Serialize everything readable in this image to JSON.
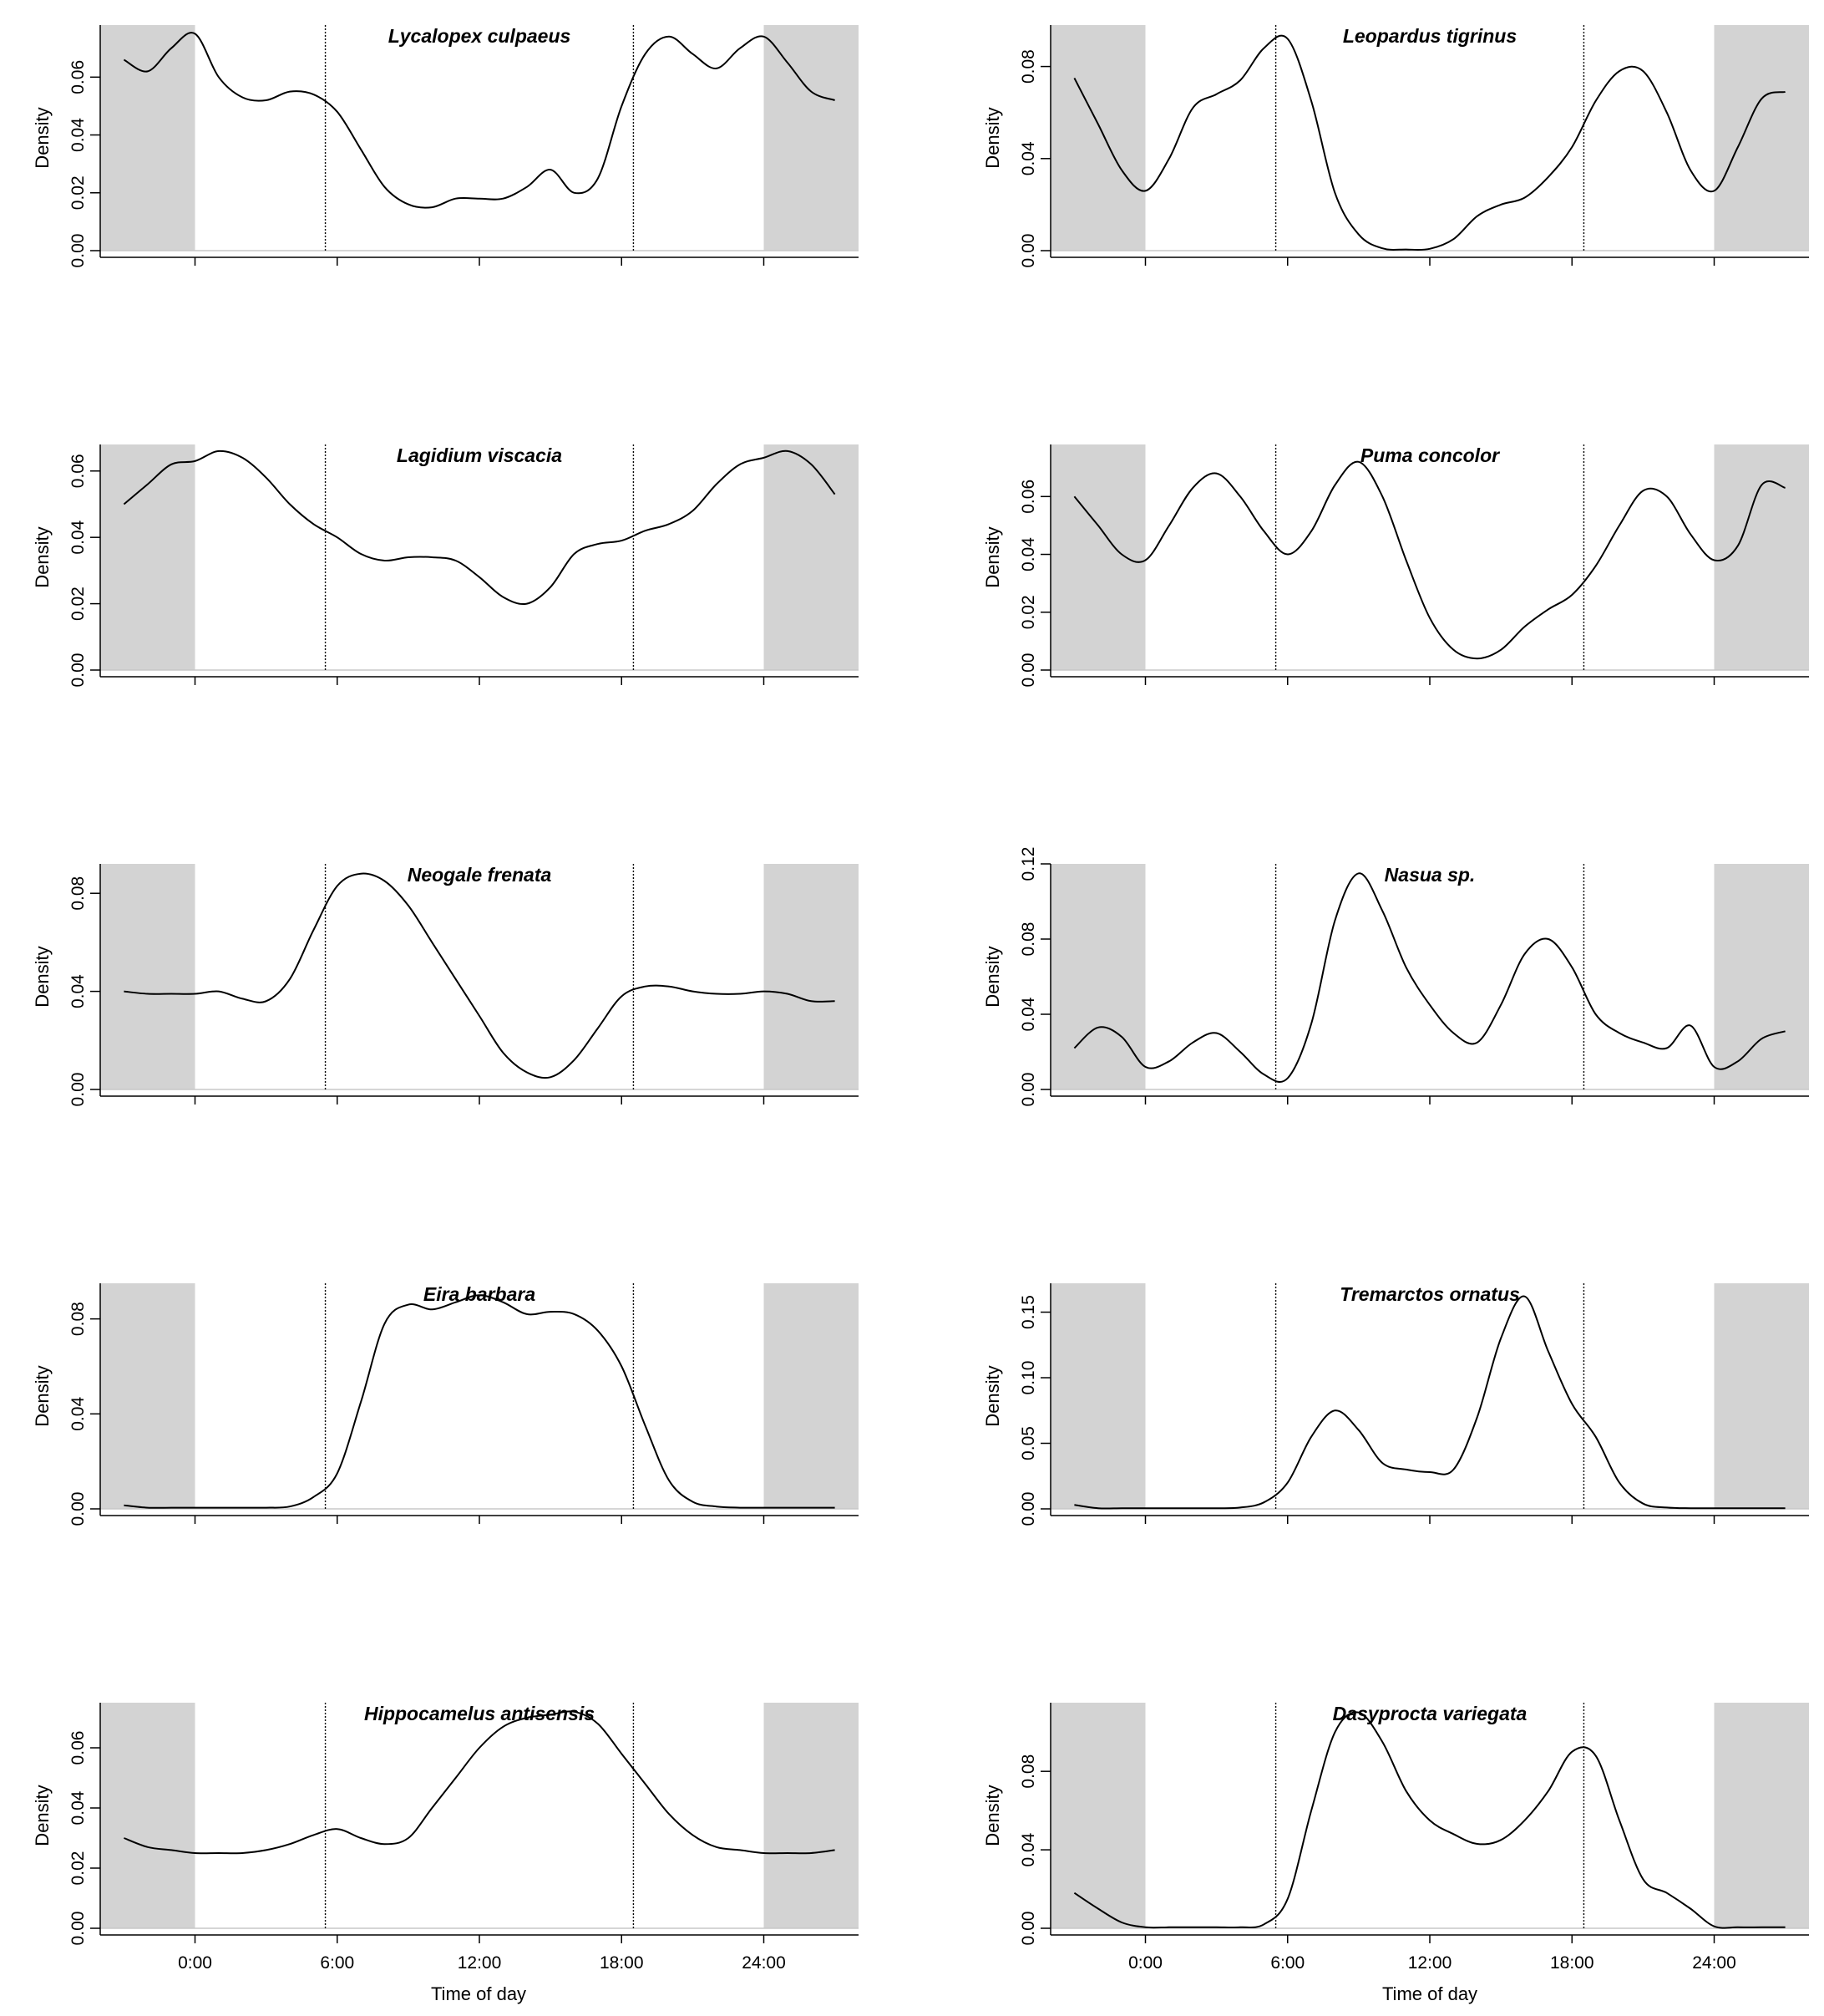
{
  "figure": {
    "xlabel": "Time of day",
    "ylabel": "Density",
    "x_tick_labels": [
      "0:00",
      "6:00",
      "12:00",
      "18:00",
      "24:00"
    ]
  },
  "chart_data": [
    {
      "type": "line",
      "title": "Lycalopex culpaeus",
      "xlabel": "",
      "ylabel": "Density",
      "xlim": [
        -4,
        28
      ],
      "ylim": [
        0,
        0.078
      ],
      "xticks": [
        0,
        6,
        12,
        18,
        24
      ],
      "yticks": [
        0,
        0.02,
        0.04,
        0.06
      ],
      "ytick_labels": [
        "0.00",
        "0.02",
        "0.04",
        "0.06"
      ],
      "night_shading": [
        [
          -4,
          0
        ],
        [
          24,
          28
        ]
      ],
      "sunrise_sunset_lines": [
        5.5,
        18.5
      ],
      "grid": false,
      "legend": "none",
      "x": [
        -3,
        -2,
        -1,
        0,
        1,
        2,
        3,
        4,
        5,
        6,
        7,
        8,
        9,
        10,
        11,
        12,
        13,
        14,
        15,
        16,
        17,
        18,
        19,
        20,
        21,
        22,
        23,
        24,
        25,
        26,
        27
      ],
      "y": [
        0.066,
        0.062,
        0.07,
        0.075,
        0.06,
        0.053,
        0.052,
        0.055,
        0.054,
        0.048,
        0.035,
        0.022,
        0.016,
        0.015,
        0.018,
        0.018,
        0.018,
        0.022,
        0.028,
        0.02,
        0.025,
        0.05,
        0.068,
        0.074,
        0.068,
        0.063,
        0.07,
        0.074,
        0.065,
        0.055,
        0.052
      ]
    },
    {
      "type": "line",
      "title": "Leopardus tigrinus",
      "xlabel": "",
      "ylabel": "Density",
      "xlim": [
        -4,
        28
      ],
      "ylim": [
        0,
        0.098
      ],
      "xticks": [
        0,
        6,
        12,
        18,
        24
      ],
      "yticks": [
        0,
        0.04,
        0.08
      ],
      "ytick_labels": [
        "0.00",
        "0.04",
        "0.08"
      ],
      "night_shading": [
        [
          -4,
          0
        ],
        [
          24,
          28
        ]
      ],
      "sunrise_sunset_lines": [
        5.5,
        18.5
      ],
      "grid": false,
      "legend": "none",
      "x": [
        -3,
        -2,
        -1,
        0,
        1,
        2,
        3,
        4,
        5,
        6,
        7,
        8,
        9,
        10,
        11,
        12,
        13,
        14,
        15,
        16,
        17,
        18,
        19,
        20,
        21,
        22,
        23,
        24,
        25,
        26,
        27
      ],
      "y": [
        0.075,
        0.055,
        0.035,
        0.026,
        0.04,
        0.062,
        0.068,
        0.074,
        0.088,
        0.092,
        0.065,
        0.025,
        0.007,
        0.001,
        0.0005,
        0.0008,
        0.005,
        0.015,
        0.02,
        0.023,
        0.032,
        0.045,
        0.065,
        0.078,
        0.078,
        0.06,
        0.035,
        0.026,
        0.045,
        0.066,
        0.069
      ]
    },
    {
      "type": "line",
      "title": "Lagidium viscacia",
      "xlabel": "",
      "ylabel": "Density",
      "xlim": [
        -4,
        28
      ],
      "ylim": [
        0,
        0.068
      ],
      "xticks": [
        0,
        6,
        12,
        18,
        24
      ],
      "yticks": [
        0,
        0.02,
        0.04,
        0.06
      ],
      "ytick_labels": [
        "0.00",
        "0.02",
        "0.04",
        "0.06"
      ],
      "night_shading": [
        [
          -4,
          0
        ],
        [
          24,
          28
        ]
      ],
      "sunrise_sunset_lines": [
        5.5,
        18.5
      ],
      "grid": false,
      "legend": "none",
      "x": [
        -3,
        -2,
        -1,
        0,
        1,
        2,
        3,
        4,
        5,
        6,
        7,
        8,
        9,
        10,
        11,
        12,
        13,
        14,
        15,
        16,
        17,
        18,
        19,
        20,
        21,
        22,
        23,
        24,
        25,
        26,
        27
      ],
      "y": [
        0.05,
        0.056,
        0.062,
        0.063,
        0.066,
        0.064,
        0.058,
        0.05,
        0.044,
        0.04,
        0.035,
        0.033,
        0.034,
        0.034,
        0.033,
        0.028,
        0.022,
        0.02,
        0.025,
        0.035,
        0.038,
        0.039,
        0.042,
        0.044,
        0.048,
        0.056,
        0.062,
        0.064,
        0.066,
        0.062,
        0.053
      ]
    },
    {
      "type": "line",
      "title": "Puma concolor",
      "xlabel": "",
      "ylabel": "Density",
      "xlim": [
        -4,
        28
      ],
      "ylim": [
        0,
        0.078
      ],
      "xticks": [
        0,
        6,
        12,
        18,
        24
      ],
      "yticks": [
        0,
        0.02,
        0.04,
        0.06
      ],
      "ytick_labels": [
        "0.00",
        "0.02",
        "0.04",
        "0.06"
      ],
      "night_shading": [
        [
          -4,
          0
        ],
        [
          24,
          28
        ]
      ],
      "sunrise_sunset_lines": [
        5.5,
        18.5
      ],
      "grid": false,
      "legend": "none",
      "x": [
        -3,
        -2,
        -1,
        0,
        1,
        2,
        3,
        4,
        5,
        6,
        7,
        8,
        9,
        10,
        11,
        12,
        13,
        14,
        15,
        16,
        17,
        18,
        19,
        20,
        21,
        22,
        23,
        24,
        25,
        26,
        27
      ],
      "y": [
        0.06,
        0.05,
        0.04,
        0.038,
        0.05,
        0.063,
        0.068,
        0.06,
        0.048,
        0.04,
        0.048,
        0.064,
        0.072,
        0.06,
        0.038,
        0.018,
        0.007,
        0.004,
        0.007,
        0.015,
        0.021,
        0.026,
        0.036,
        0.05,
        0.062,
        0.06,
        0.047,
        0.038,
        0.043,
        0.064,
        0.063
      ]
    },
    {
      "type": "line",
      "title": "Neogale frenata",
      "xlabel": "",
      "ylabel": "Density",
      "xlim": [
        -4,
        28
      ],
      "ylim": [
        0,
        0.092
      ],
      "xticks": [
        0,
        6,
        12,
        18,
        24
      ],
      "yticks": [
        0,
        0.04,
        0.08
      ],
      "ytick_labels": [
        "0.00",
        "0.04",
        "0.08"
      ],
      "night_shading": [
        [
          -4,
          0
        ],
        [
          24,
          28
        ]
      ],
      "sunrise_sunset_lines": [
        5.5,
        18.5
      ],
      "grid": false,
      "legend": "none",
      "x": [
        -3,
        -2,
        -1,
        0,
        1,
        2,
        3,
        4,
        5,
        6,
        7,
        8,
        9,
        10,
        11,
        12,
        13,
        14,
        15,
        16,
        17,
        18,
        19,
        20,
        21,
        22,
        23,
        24,
        25,
        26,
        27
      ],
      "y": [
        0.04,
        0.039,
        0.039,
        0.039,
        0.04,
        0.037,
        0.036,
        0.045,
        0.065,
        0.083,
        0.088,
        0.085,
        0.075,
        0.06,
        0.045,
        0.03,
        0.015,
        0.007,
        0.005,
        0.012,
        0.025,
        0.038,
        0.042,
        0.042,
        0.04,
        0.039,
        0.039,
        0.04,
        0.039,
        0.036,
        0.036
      ]
    },
    {
      "type": "line",
      "title": "Nasua sp.",
      "xlabel": "",
      "ylabel": "Density",
      "xlim": [
        -4,
        28
      ],
      "ylim": [
        0,
        0.12
      ],
      "xticks": [
        0,
        6,
        12,
        18,
        24
      ],
      "yticks": [
        0,
        0.04,
        0.08,
        0.12
      ],
      "ytick_labels": [
        "0.00",
        "0.04",
        "0.08",
        "0.12"
      ],
      "night_shading": [
        [
          -4,
          0
        ],
        [
          24,
          28
        ]
      ],
      "sunrise_sunset_lines": [
        5.5,
        18.5
      ],
      "grid": false,
      "legend": "none",
      "x": [
        -3,
        -2,
        -1,
        0,
        1,
        2,
        3,
        4,
        5,
        6,
        7,
        8,
        9,
        10,
        11,
        12,
        13,
        14,
        15,
        16,
        17,
        18,
        19,
        20,
        21,
        22,
        23,
        24,
        25,
        26,
        27
      ],
      "y": [
        0.022,
        0.033,
        0.028,
        0.012,
        0.015,
        0.025,
        0.03,
        0.02,
        0.008,
        0.006,
        0.035,
        0.09,
        0.115,
        0.095,
        0.065,
        0.045,
        0.03,
        0.025,
        0.045,
        0.072,
        0.08,
        0.065,
        0.04,
        0.03,
        0.025,
        0.022,
        0.034,
        0.012,
        0.015,
        0.027,
        0.031
      ]
    },
    {
      "type": "line",
      "title": "Eira barbara",
      "xlabel": "",
      "ylabel": "Density",
      "xlim": [
        -4,
        28
      ],
      "ylim": [
        0,
        0.095
      ],
      "xticks": [
        0,
        6,
        12,
        18,
        24
      ],
      "yticks": [
        0,
        0.04,
        0.08
      ],
      "ytick_labels": [
        "0.00",
        "0.04",
        "0.08"
      ],
      "night_shading": [
        [
          -4,
          0
        ],
        [
          24,
          28
        ]
      ],
      "sunrise_sunset_lines": [
        5.5,
        18.5
      ],
      "grid": false,
      "legend": "none",
      "x": [
        -3,
        -2,
        -1,
        0,
        1,
        2,
        3,
        4,
        5,
        6,
        7,
        8,
        9,
        10,
        11,
        12,
        13,
        14,
        15,
        16,
        17,
        18,
        19,
        20,
        21,
        22,
        23,
        24,
        25,
        26,
        27
      ],
      "y": [
        0.0015,
        0.0005,
        0.0005,
        0.0005,
        0.0005,
        0.0005,
        0.0005,
        0.001,
        0.005,
        0.015,
        0.045,
        0.078,
        0.086,
        0.084,
        0.087,
        0.09,
        0.087,
        0.082,
        0.083,
        0.082,
        0.075,
        0.06,
        0.035,
        0.012,
        0.003,
        0.001,
        0.0005,
        0.0005,
        0.0005,
        0.0005,
        0.0005
      ]
    },
    {
      "type": "line",
      "title": "Tremarctos ornatus",
      "xlabel": "",
      "ylabel": "Density",
      "xlim": [
        -4,
        28
      ],
      "ylim": [
        0,
        0.172
      ],
      "xticks": [
        0,
        6,
        12,
        18,
        24
      ],
      "yticks": [
        0,
        0.05,
        0.1,
        0.15
      ],
      "ytick_labels": [
        "0.00",
        "0.05",
        "0.10",
        "0.15"
      ],
      "night_shading": [
        [
          -4,
          0
        ],
        [
          24,
          28
        ]
      ],
      "sunrise_sunset_lines": [
        5.5,
        18.5
      ],
      "grid": false,
      "legend": "none",
      "x": [
        -3,
        -2,
        -1,
        0,
        1,
        2,
        3,
        4,
        5,
        6,
        7,
        8,
        9,
        10,
        11,
        12,
        13,
        14,
        15,
        16,
        17,
        18,
        19,
        20,
        21,
        22,
        23,
        24,
        25,
        26,
        27
      ],
      "y": [
        0.003,
        0.0005,
        0.0005,
        0.0005,
        0.0005,
        0.0005,
        0.0005,
        0.001,
        0.005,
        0.02,
        0.055,
        0.075,
        0.06,
        0.035,
        0.03,
        0.028,
        0.03,
        0.07,
        0.13,
        0.162,
        0.12,
        0.08,
        0.055,
        0.02,
        0.004,
        0.001,
        0.0005,
        0.0005,
        0.0005,
        0.0005,
        0.0005
      ]
    },
    {
      "type": "line",
      "title": "Hippocamelus antisensis",
      "xlabel": "Time of day",
      "ylabel": "Density",
      "xlim": [
        -4,
        28
      ],
      "ylim": [
        0,
        0.075
      ],
      "xticks": [
        0,
        6,
        12,
        18,
        24
      ],
      "xtick_labels": [
        "0:00",
        "6:00",
        "12:00",
        "18:00",
        "24:00"
      ],
      "yticks": [
        0,
        0.02,
        0.04,
        0.06
      ],
      "ytick_labels": [
        "0.00",
        "0.02",
        "0.04",
        "0.06"
      ],
      "night_shading": [
        [
          -4,
          0
        ],
        [
          24,
          28
        ]
      ],
      "sunrise_sunset_lines": [
        5.5,
        18.5
      ],
      "grid": false,
      "legend": "none",
      "x": [
        -3,
        -2,
        -1,
        0,
        1,
        2,
        3,
        4,
        5,
        6,
        7,
        8,
        9,
        10,
        11,
        12,
        13,
        14,
        15,
        16,
        17,
        18,
        19,
        20,
        21,
        22,
        23,
        24,
        25,
        26,
        27
      ],
      "y": [
        0.03,
        0.027,
        0.026,
        0.025,
        0.025,
        0.025,
        0.026,
        0.028,
        0.031,
        0.033,
        0.03,
        0.028,
        0.03,
        0.04,
        0.05,
        0.06,
        0.067,
        0.07,
        0.071,
        0.072,
        0.068,
        0.058,
        0.048,
        0.038,
        0.031,
        0.027,
        0.026,
        0.025,
        0.025,
        0.025,
        0.026
      ]
    },
    {
      "type": "line",
      "title": "Dasyprocta variegata",
      "xlabel": "Time of day",
      "ylabel": "Density",
      "xlim": [
        -4,
        28
      ],
      "ylim": [
        0,
        0.115
      ],
      "xticks": [
        0,
        6,
        12,
        18,
        24
      ],
      "xtick_labels": [
        "0:00",
        "6:00",
        "12:00",
        "18:00",
        "24:00"
      ],
      "yticks": [
        0,
        0.04,
        0.08
      ],
      "ytick_labels": [
        "0.00",
        "0.04",
        "0.08"
      ],
      "night_shading": [
        [
          -4,
          0
        ],
        [
          24,
          28
        ]
      ],
      "sunrise_sunset_lines": [
        5.5,
        18.5
      ],
      "grid": false,
      "legend": "none",
      "x": [
        -3,
        -2,
        -1,
        0,
        1,
        2,
        3,
        4,
        5,
        6,
        7,
        8,
        9,
        10,
        11,
        12,
        13,
        14,
        15,
        16,
        17,
        18,
        19,
        20,
        21,
        22,
        23,
        24,
        25,
        26,
        27
      ],
      "y": [
        0.018,
        0.01,
        0.003,
        0.0005,
        0.0005,
        0.0005,
        0.0005,
        0.0005,
        0.002,
        0.015,
        0.06,
        0.1,
        0.11,
        0.095,
        0.07,
        0.055,
        0.048,
        0.043,
        0.045,
        0.055,
        0.07,
        0.09,
        0.088,
        0.055,
        0.025,
        0.018,
        0.01,
        0.001,
        0.0005,
        0.0005,
        0.0005
      ]
    }
  ]
}
